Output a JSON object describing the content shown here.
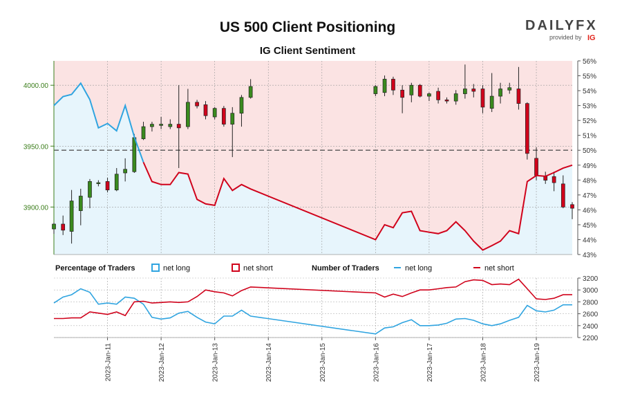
{
  "header": {
    "title": "US 500 Client Positioning",
    "subtitle": "IG Client Sentiment"
  },
  "brand": {
    "name": "DAILYFX",
    "provided_by": "provided by",
    "ig": "IG"
  },
  "legend": {
    "pct_heading": "Percentage of Traders",
    "num_heading": "Number of Traders",
    "net_long": "net long",
    "net_short": "net short"
  },
  "colors": {
    "long": "#2fa4e0",
    "short": "#d0021b",
    "up": "#3a8a1e",
    "down": "#d0021b",
    "long_fill": "#e7f5fc",
    "short_fill": "#fbe3e3"
  },
  "chart_data": {
    "type": "candlestick",
    "title": "US 500 Client Positioning",
    "subtitle": "IG Client Sentiment",
    "x_date_labels": [
      "2023-Jan-11",
      "2023-Jan-12",
      "2023-Jan-13",
      "2023-Jan-14",
      "2023-Jan-15",
      "2023-Jan-16",
      "2023-Jan-17",
      "2023-Jan-18",
      "2023-Jan-19"
    ],
    "price_axis": {
      "ylim": [
        3861,
        4020
      ],
      "ticks": [
        "3900.00",
        "3950.00",
        "4000.00"
      ],
      "tick_values": [
        3900,
        3950,
        4000
      ]
    },
    "pct_axis": {
      "ylim": [
        43,
        56
      ],
      "ticks": [
        "43%",
        "44%",
        "45%",
        "46%",
        "47%",
        "48%",
        "49%",
        "50%",
        "51%",
        "52%",
        "53%",
        "54%",
        "55%",
        "56%"
      ],
      "tick_values": [
        43,
        44,
        45,
        46,
        47,
        48,
        49,
        50,
        51,
        52,
        53,
        54,
        55,
        56
      ],
      "reference": 50
    },
    "count_axis": {
      "ylim": [
        2200,
        3200
      ],
      "ticks": [
        "2200",
        "2400",
        "2600",
        "2800",
        "3000",
        "3200"
      ],
      "tick_values": [
        2200,
        2400,
        2600,
        2800,
        3000,
        3200
      ]
    },
    "candles": [
      {
        "t": 10.0,
        "o": 3882,
        "h": 3887,
        "l": 3878,
        "c": 3886
      },
      {
        "t": 10.17,
        "o": 3886,
        "h": 3893,
        "l": 3877,
        "c": 3881
      },
      {
        "t": 10.33,
        "o": 3880,
        "h": 3914,
        "l": 3870,
        "c": 3905
      },
      {
        "t": 10.5,
        "o": 3897,
        "h": 3915,
        "l": 3885,
        "c": 3909
      },
      {
        "t": 10.67,
        "o": 3908,
        "h": 3923,
        "l": 3899,
        "c": 3921
      },
      {
        "t": 10.83,
        "o": 3920,
        "h": 3922,
        "l": 3917,
        "c": 3920
      },
      {
        "t": 11.0,
        "o": 3921,
        "h": 3924,
        "l": 3912,
        "c": 3914
      },
      {
        "t": 11.17,
        "o": 3914,
        "h": 3932,
        "l": 3913,
        "c": 3927
      },
      {
        "t": 11.33,
        "o": 3928,
        "h": 3940,
        "l": 3921,
        "c": 3931
      },
      {
        "t": 11.5,
        "o": 3929,
        "h": 3960,
        "l": 3928,
        "c": 3957
      },
      {
        "t": 11.67,
        "o": 3956,
        "h": 3970,
        "l": 3955,
        "c": 3966
      },
      {
        "t": 11.83,
        "o": 3966,
        "h": 3970,
        "l": 3962,
        "c": 3968
      },
      {
        "t": 12.0,
        "o": 3967,
        "h": 3974,
        "l": 3964,
        "c": 3968
      },
      {
        "t": 12.17,
        "o": 3966,
        "h": 3972,
        "l": 3964,
        "c": 3968
      },
      {
        "t": 12.33,
        "o": 3968,
        "h": 4000,
        "l": 3932,
        "c": 3965
      },
      {
        "t": 12.5,
        "o": 3966,
        "h": 3997,
        "l": 3964,
        "c": 3986
      },
      {
        "t": 12.67,
        "o": 3986,
        "h": 3988,
        "l": 3981,
        "c": 3983
      },
      {
        "t": 12.83,
        "o": 3984,
        "h": 3987,
        "l": 3972,
        "c": 3975
      },
      {
        "t": 13.0,
        "o": 3974,
        "h": 3982,
        "l": 3972,
        "c": 3981
      },
      {
        "t": 13.17,
        "o": 3981,
        "h": 3983,
        "l": 3966,
        "c": 3968
      },
      {
        "t": 13.33,
        "o": 3968,
        "h": 3982,
        "l": 3941,
        "c": 3977
      },
      {
        "t": 13.5,
        "o": 3977,
        "h": 3992,
        "l": 3966,
        "c": 3990
      },
      {
        "t": 13.67,
        "o": 3990,
        "h": 4005,
        "l": 3989,
        "c": 3999
      },
      {
        "t": 16.0,
        "o": 3993,
        "h": 4000,
        "l": 3991,
        "c": 3999
      },
      {
        "t": 16.17,
        "o": 3994,
        "h": 4008,
        "l": 3991,
        "c": 4005
      },
      {
        "t": 16.33,
        "o": 4005,
        "h": 4007,
        "l": 3992,
        "c": 3996
      },
      {
        "t": 16.5,
        "o": 3996,
        "h": 4000,
        "l": 3977,
        "c": 3990
      },
      {
        "t": 16.67,
        "o": 3992,
        "h": 4002,
        "l": 3986,
        "c": 4000
      },
      {
        "t": 16.83,
        "o": 4000,
        "h": 4001,
        "l": 3990,
        "c": 3991
      },
      {
        "t": 17.0,
        "o": 3991,
        "h": 3994,
        "l": 3987,
        "c": 3993
      },
      {
        "t": 17.17,
        "o": 3995,
        "h": 3998,
        "l": 3985,
        "c": 3988
      },
      {
        "t": 17.33,
        "o": 3988,
        "h": 3990,
        "l": 3985,
        "c": 3987
      },
      {
        "t": 17.5,
        "o": 3987,
        "h": 3996,
        "l": 3984,
        "c": 3993
      },
      {
        "t": 17.67,
        "o": 3993,
        "h": 4017,
        "l": 3989,
        "c": 3997
      },
      {
        "t": 17.83,
        "o": 3997,
        "h": 4001,
        "l": 3990,
        "c": 3995
      },
      {
        "t": 18.0,
        "o": 3997,
        "h": 4000,
        "l": 3977,
        "c": 3982
      },
      {
        "t": 18.17,
        "o": 3981,
        "h": 4010,
        "l": 3978,
        "c": 3991
      },
      {
        "t": 18.33,
        "o": 3991,
        "h": 4002,
        "l": 3985,
        "c": 3997
      },
      {
        "t": 18.5,
        "o": 3996,
        "h": 4002,
        "l": 3993,
        "c": 3998
      },
      {
        "t": 18.67,
        "o": 3997,
        "h": 4015,
        "l": 3980,
        "c": 3985
      },
      {
        "t": 18.83,
        "o": 3985,
        "h": 3986,
        "l": 3939,
        "c": 3944
      },
      {
        "t": 19.0,
        "o": 3940,
        "h": 3949,
        "l": 3922,
        "c": 3926
      },
      {
        "t": 19.17,
        "o": 3925,
        "h": 3929,
        "l": 3919,
        "c": 3922
      },
      {
        "t": 19.33,
        "o": 3925,
        "h": 3929,
        "l": 3913,
        "c": 3920
      },
      {
        "t": 19.5,
        "o": 3919,
        "h": 3926,
        "l": 3899,
        "c": 3900
      },
      {
        "t": 19.67,
        "o": 3902,
        "h": 3904,
        "l": 3890,
        "c": 3899
      }
    ],
    "sentiment": {
      "name": "net long %",
      "t": [
        10.0,
        10.17,
        10.33,
        10.5,
        10.67,
        10.83,
        11.0,
        11.17,
        11.33,
        11.5,
        11.67,
        11.83,
        12.0,
        12.17,
        12.33,
        12.5,
        12.67,
        12.83,
        13.0,
        13.17,
        13.33,
        13.5,
        13.67,
        16.0,
        16.17,
        16.33,
        16.5,
        16.67,
        16.83,
        17.0,
        17.17,
        17.33,
        17.5,
        17.67,
        17.83,
        18.0,
        18.17,
        18.33,
        18.5,
        18.67,
        18.83,
        19.0,
        19.17,
        19.33,
        19.5,
        19.67
      ],
      "pct": [
        53.0,
        53.6,
        53.75,
        54.5,
        53.4,
        51.5,
        51.8,
        51.3,
        53.0,
        50.9,
        49.2,
        47.9,
        47.7,
        47.7,
        48.5,
        48.4,
        46.7,
        46.4,
        46.3,
        48.1,
        47.3,
        47.7,
        47.4,
        44.0,
        45.0,
        44.8,
        45.8,
        45.9,
        44.6,
        44.5,
        44.4,
        44.6,
        45.2,
        44.6,
        43.9,
        43.3,
        43.6,
        43.9,
        44.6,
        44.4,
        47.9,
        48.3,
        48.25,
        48.5,
        48.8,
        49.0
      ]
    },
    "traders": {
      "t": [
        10.0,
        10.17,
        10.33,
        10.5,
        10.67,
        10.83,
        11.0,
        11.17,
        11.33,
        11.5,
        11.67,
        11.83,
        12.0,
        12.17,
        12.33,
        12.5,
        12.67,
        12.83,
        13.0,
        13.17,
        13.33,
        13.5,
        13.67,
        16.0,
        16.17,
        16.33,
        16.5,
        16.67,
        16.83,
        17.0,
        17.17,
        17.33,
        17.5,
        17.67,
        17.83,
        18.0,
        18.17,
        18.33,
        18.5,
        18.67,
        18.83,
        19.0,
        19.17,
        19.33,
        19.5,
        19.67
      ],
      "series": [
        {
          "name": "net long",
          "values": [
            2780,
            2880,
            2920,
            3020,
            2960,
            2760,
            2780,
            2760,
            2880,
            2860,
            2760,
            2540,
            2510,
            2530,
            2610,
            2640,
            2540,
            2460,
            2430,
            2560,
            2560,
            2660,
            2560,
            2260,
            2360,
            2380,
            2450,
            2500,
            2400,
            2400,
            2410,
            2440,
            2510,
            2520,
            2490,
            2430,
            2400,
            2430,
            2490,
            2540,
            2740,
            2650,
            2630,
            2660,
            2750,
            2750
          ]
        },
        {
          "name": "net short",
          "values": [
            2520,
            2520,
            2530,
            2530,
            2630,
            2610,
            2590,
            2630,
            2570,
            2800,
            2810,
            2780,
            2790,
            2800,
            2790,
            2800,
            2890,
            3000,
            2970,
            2950,
            2900,
            2990,
            3050,
            2950,
            2880,
            2930,
            2890,
            2950,
            3000,
            3000,
            3020,
            3040,
            3050,
            3140,
            3170,
            3160,
            3090,
            3100,
            3090,
            3180,
            3020,
            2850,
            2840,
            2860,
            2920,
            2920
          ]
        }
      ]
    }
  }
}
